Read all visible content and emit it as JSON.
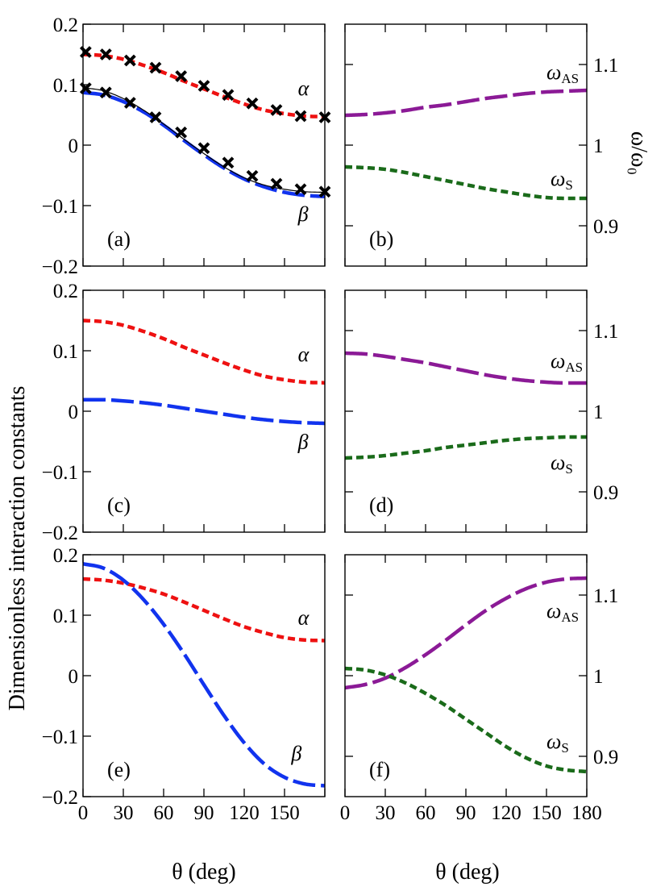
{
  "figure": {
    "ylabel_left": "Dimensionless interaction constants",
    "ylabel_right": "ω/ω₀",
    "xlabel": "θ (deg)"
  },
  "chart_data": [
    {
      "type": "line",
      "panel_label": "(a)",
      "xlim": [
        0,
        180
      ],
      "ylim": [
        -0.2,
        0.2
      ],
      "yticks": [
        "0.2",
        "0.1",
        "0",
        "−0.1",
        "−0.2"
      ],
      "xticks": [],
      "grid": false,
      "x": [
        0,
        15,
        30,
        45,
        60,
        75,
        90,
        105,
        120,
        135,
        150,
        165,
        180
      ],
      "series": [
        {
          "name": "α",
          "style": "short-dash",
          "color": "#ee1111",
          "values": [
            0.15,
            0.148,
            0.142,
            0.132,
            0.12,
            0.106,
            0.093,
            0.08,
            0.068,
            0.058,
            0.052,
            0.048,
            0.047
          ]
        },
        {
          "name": "β",
          "style": "long-dash",
          "color": "#1133ee",
          "values": [
            0.087,
            0.083,
            0.072,
            0.055,
            0.033,
            0.008,
            -0.016,
            -0.038,
            -0.056,
            -0.069,
            -0.078,
            -0.083,
            -0.085
          ]
        },
        {
          "name": "",
          "style": "thin-solid",
          "color": "#000000",
          "values": [
            0.095,
            0.09,
            0.077,
            0.058,
            0.035,
            0.01,
            -0.014,
            -0.036,
            -0.054,
            -0.066,
            -0.073,
            -0.077,
            -0.078
          ]
        }
      ],
      "markers": {
        "style": "cross",
        "points": [
          [
            2,
            0.154
          ],
          [
            17,
            0.15
          ],
          [
            35,
            0.14
          ],
          [
            54,
            0.128
          ],
          [
            73,
            0.114
          ],
          [
            90,
            0.098
          ],
          [
            108,
            0.083
          ],
          [
            126,
            0.069
          ],
          [
            144,
            0.058
          ],
          [
            162,
            0.048
          ],
          [
            180,
            0.046
          ],
          [
            2,
            0.094
          ],
          [
            17,
            0.087
          ],
          [
            35,
            0.07
          ],
          [
            54,
            0.046
          ],
          [
            73,
            0.021
          ],
          [
            90,
            -0.005
          ],
          [
            108,
            -0.029
          ],
          [
            126,
            -0.051
          ],
          [
            144,
            -0.064
          ],
          [
            162,
            -0.073
          ],
          [
            180,
            -0.077
          ]
        ]
      },
      "annotations": [
        {
          "text": "α",
          "x": 160,
          "y": 0.083
        },
        {
          "text": "β",
          "x": 160,
          "y": -0.125
        }
      ]
    },
    {
      "type": "line",
      "panel_label": "(b)",
      "xlim": [
        0,
        180
      ],
      "ylim": [
        0.85,
        1.15
      ],
      "yticks": [
        "1.1",
        "1",
        "0.9"
      ],
      "xticks": [],
      "grid": false,
      "x": [
        0,
        15,
        30,
        45,
        60,
        75,
        90,
        105,
        120,
        135,
        150,
        165,
        180
      ],
      "series": [
        {
          "name": "ω_AS",
          "style": "long-dash",
          "color": "#8b1a96",
          "values": [
            1.037,
            1.038,
            1.04,
            1.043,
            1.047,
            1.05,
            1.054,
            1.058,
            1.061,
            1.064,
            1.066,
            1.067,
            1.068
          ]
        },
        {
          "name": "ω_S",
          "style": "short-dash",
          "color": "#1a6b1a",
          "values": [
            0.973,
            0.972,
            0.97,
            0.966,
            0.961,
            0.956,
            0.951,
            0.946,
            0.942,
            0.938,
            0.935,
            0.934,
            0.934
          ]
        }
      ],
      "annotations": [
        {
          "text": "ω",
          "sub": "AS",
          "x": 150,
          "y": 1.082
        },
        {
          "text": "ω",
          "sub": "S",
          "x": 153,
          "y": 0.95
        }
      ]
    },
    {
      "type": "line",
      "panel_label": "(c)",
      "xlim": [
        0,
        180
      ],
      "ylim": [
        -0.2,
        0.2
      ],
      "yticks": [
        "0.2",
        "0.1",
        "0",
        "−0.1",
        "−0.2"
      ],
      "xticks": [],
      "grid": false,
      "x": [
        0,
        15,
        30,
        45,
        60,
        75,
        90,
        105,
        120,
        135,
        150,
        165,
        180
      ],
      "series": [
        {
          "name": "α",
          "style": "short-dash",
          "color": "#ee1111",
          "values": [
            0.15,
            0.148,
            0.142,
            0.132,
            0.12,
            0.106,
            0.093,
            0.08,
            0.068,
            0.058,
            0.052,
            0.048,
            0.047
          ]
        },
        {
          "name": "β",
          "style": "long-dash",
          "color": "#1133ee",
          "values": [
            0.019,
            0.019,
            0.017,
            0.014,
            0.01,
            0.005,
            0.0,
            -0.005,
            -0.01,
            -0.014,
            -0.017,
            -0.019,
            -0.02
          ]
        }
      ],
      "annotations": [
        {
          "text": "α",
          "x": 160,
          "y": 0.083
        },
        {
          "text": "β",
          "x": 160,
          "y": -0.062
        }
      ]
    },
    {
      "type": "line",
      "panel_label": "(d)",
      "xlim": [
        0,
        180
      ],
      "ylim": [
        0.85,
        1.15
      ],
      "yticks": [
        "1.1",
        "1",
        "0.9"
      ],
      "xticks": [],
      "grid": false,
      "x": [
        0,
        15,
        30,
        45,
        60,
        75,
        90,
        105,
        120,
        135,
        150,
        165,
        180
      ],
      "series": [
        {
          "name": "ω_AS",
          "style": "long-dash",
          "color": "#8b1a96",
          "values": [
            1.072,
            1.071,
            1.068,
            1.064,
            1.06,
            1.055,
            1.05,
            1.045,
            1.041,
            1.038,
            1.036,
            1.035,
            1.035
          ]
        },
        {
          "name": "ω_S",
          "style": "short-dash",
          "color": "#1a6b1a",
          "values": [
            0.942,
            0.943,
            0.945,
            0.948,
            0.951,
            0.955,
            0.958,
            0.961,
            0.964,
            0.966,
            0.967,
            0.968,
            0.968
          ]
        }
      ],
      "annotations": [
        {
          "text": "ω",
          "sub": "AS",
          "x": 153,
          "y": 1.054
        },
        {
          "text": "ω",
          "sub": "S",
          "x": 153,
          "y": 0.928
        }
      ]
    },
    {
      "type": "line",
      "panel_label": "(e)",
      "xlim": [
        0,
        180
      ],
      "ylim": [
        -0.2,
        0.2
      ],
      "yticks": [
        "0.2",
        "0.1",
        "0",
        "−0.1",
        "−0.2"
      ],
      "xticks": [
        "0",
        "30",
        "60",
        "90",
        "120",
        "150"
      ],
      "grid": false,
      "x": [
        0,
        15,
        30,
        45,
        60,
        75,
        90,
        105,
        120,
        135,
        150,
        165,
        180
      ],
      "series": [
        {
          "name": "α",
          "style": "short-dash",
          "color": "#ee1111",
          "values": [
            0.16,
            0.158,
            0.153,
            0.145,
            0.135,
            0.122,
            0.108,
            0.094,
            0.081,
            0.071,
            0.063,
            0.059,
            0.058
          ]
        },
        {
          "name": "β",
          "style": "long-dash",
          "color": "#1133ee",
          "values": [
            0.185,
            0.178,
            0.158,
            0.126,
            0.085,
            0.037,
            -0.015,
            -0.066,
            -0.111,
            -0.146,
            -0.168,
            -0.179,
            -0.182
          ]
        }
      ],
      "annotations": [
        {
          "text": "α",
          "x": 160,
          "y": 0.085
        },
        {
          "text": "β",
          "x": 155,
          "y": -0.14
        }
      ]
    },
    {
      "type": "line",
      "panel_label": "(f)",
      "xlim": [
        0,
        180
      ],
      "ylim": [
        0.85,
        1.15
      ],
      "yticks": [
        "1.1",
        "1",
        "0.9"
      ],
      "xticks": [
        "0",
        "30",
        "60",
        "90",
        "120",
        "150",
        "180"
      ],
      "grid": false,
      "x": [
        0,
        15,
        30,
        45,
        60,
        75,
        90,
        105,
        120,
        135,
        150,
        165,
        180
      ],
      "series": [
        {
          "name": "ω_AS",
          "style": "long-dash",
          "color": "#8b1a96",
          "values": [
            0.985,
            0.989,
            0.997,
            1.01,
            1.026,
            1.044,
            1.063,
            1.081,
            1.096,
            1.108,
            1.116,
            1.12,
            1.121
          ]
        },
        {
          "name": "ω_S",
          "style": "short-dash",
          "color": "#1a6b1a",
          "values": [
            1.009,
            1.007,
            1.001,
            0.991,
            0.978,
            0.963,
            0.946,
            0.929,
            0.912,
            0.898,
            0.888,
            0.883,
            0.881
          ]
        }
      ],
      "annotations": [
        {
          "text": "ω",
          "sub": "AS",
          "x": 150,
          "y": 1.072
        },
        {
          "text": "ω",
          "sub": "S",
          "x": 150,
          "y": 0.91
        }
      ]
    }
  ]
}
